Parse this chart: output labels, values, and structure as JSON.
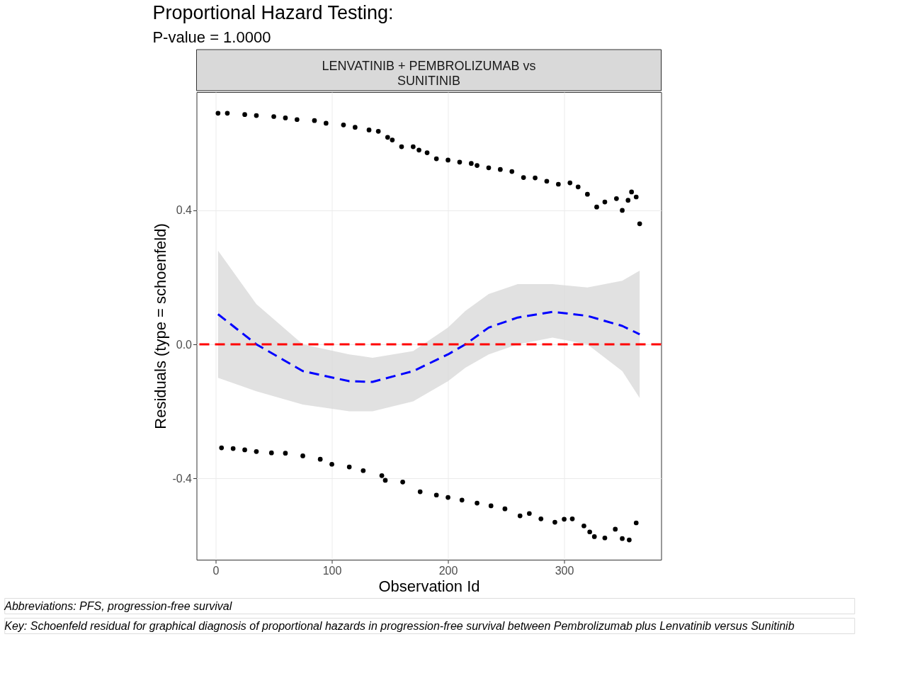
{
  "chart_data": {
    "type": "scatter",
    "title": "Proportional Hazard Testing:",
    "subtitle": "P-value = 1.0000",
    "annotations": [
      "LENVATINIB + PEMBROLIZUMAB vs\nSUNITINIB",
      "Abbreviations: PFS, progression-free survival",
      "Key: Schoenfeld residual for graphical diagnosis of proportional hazards in progression-free survival between Pembrolizumab plus Lenvatinib versus Sunitinib"
    ],
    "xlabel": "Observation Id",
    "ylabel": "Residuals (type = schoenfeld)",
    "xlim": [
      -16.5,
      383.5
    ],
    "ylim": [
      -0.643,
      0.753
    ],
    "xticks": [
      0,
      100,
      200,
      300
    ],
    "yticks": [
      {
        "value": -0.4,
        "label": "-0.4"
      },
      {
        "value": 0,
        "label": "0.0"
      },
      {
        "value": 0.4,
        "label": "0.4"
      }
    ],
    "grid": true,
    "series": [
      {
        "marker": "circle",
        "color": "#000000",
        "x": [
          2,
          10,
          25,
          35,
          50,
          60,
          70,
          85,
          95,
          110,
          120,
          132,
          140,
          148,
          152,
          160,
          170,
          175,
          182,
          190,
          200,
          210,
          220,
          225,
          235,
          245,
          255,
          265,
          275,
          285,
          295,
          305,
          312,
          320,
          328,
          335,
          345,
          350,
          355,
          358,
          362,
          365
        ],
        "values": [
          0.69,
          0.69,
          0.686,
          0.683,
          0.68,
          0.676,
          0.671,
          0.668,
          0.66,
          0.655,
          0.648,
          0.64,
          0.636,
          0.618,
          0.61,
          0.59,
          0.59,
          0.58,
          0.572,
          0.554,
          0.55,
          0.544,
          0.54,
          0.534,
          0.527,
          0.522,
          0.516,
          0.498,
          0.497,
          0.487,
          0.478,
          0.482,
          0.47,
          0.448,
          0.41,
          0.425,
          0.435,
          0.4,
          0.43,
          0.455,
          0.44,
          0.36
        ]
      },
      {
        "marker": "circle",
        "color": "#000000",
        "x": [
          5,
          15,
          25,
          35,
          48,
          60,
          75,
          90,
          100,
          115,
          127,
          143,
          146,
          161,
          176,
          190,
          200,
          212,
          225,
          237,
          249,
          262,
          270,
          280,
          292,
          300,
          307,
          317,
          322,
          326,
          335,
          344,
          350,
          356,
          362
        ],
        "values": [
          -0.309,
          -0.311,
          -0.315,
          -0.32,
          -0.324,
          -0.325,
          -0.333,
          -0.343,
          -0.358,
          -0.366,
          -0.377,
          -0.392,
          -0.406,
          -0.411,
          -0.44,
          -0.45,
          -0.457,
          -0.465,
          -0.474,
          -0.482,
          -0.491,
          -0.512,
          -0.505,
          -0.521,
          -0.531,
          -0.522,
          -0.521,
          -0.542,
          -0.56,
          -0.574,
          -0.578,
          -0.552,
          -0.58,
          -0.584,
          -0.533
        ]
      },
      {
        "type": "line",
        "color": "#0000ff",
        "line_style": "dashed",
        "x": [
          2,
          35,
          75,
          115,
          135,
          170,
          200,
          215,
          235,
          260,
          290,
          320,
          350,
          365
        ],
        "values": [
          0.09,
          0.0,
          -0.08,
          -0.11,
          -0.112,
          -0.08,
          -0.03,
          0.0,
          0.05,
          0.08,
          0.097,
          0.085,
          0.055,
          0.03
        ],
        "lower": [
          -0.1,
          -0.14,
          -0.18,
          -0.2,
          -0.2,
          -0.17,
          -0.11,
          -0.07,
          -0.03,
          0.0,
          0.02,
          0.0,
          -0.08,
          -0.16
        ],
        "upper": [
          0.28,
          0.12,
          0.0,
          -0.03,
          -0.04,
          -0.02,
          0.05,
          0.1,
          0.15,
          0.18,
          0.18,
          0.17,
          0.19,
          0.22
        ]
      }
    ],
    "ref_lines": [
      {
        "axis": "y",
        "value": 0,
        "color": "#ff0000",
        "line_style": "dashed"
      }
    ]
  }
}
